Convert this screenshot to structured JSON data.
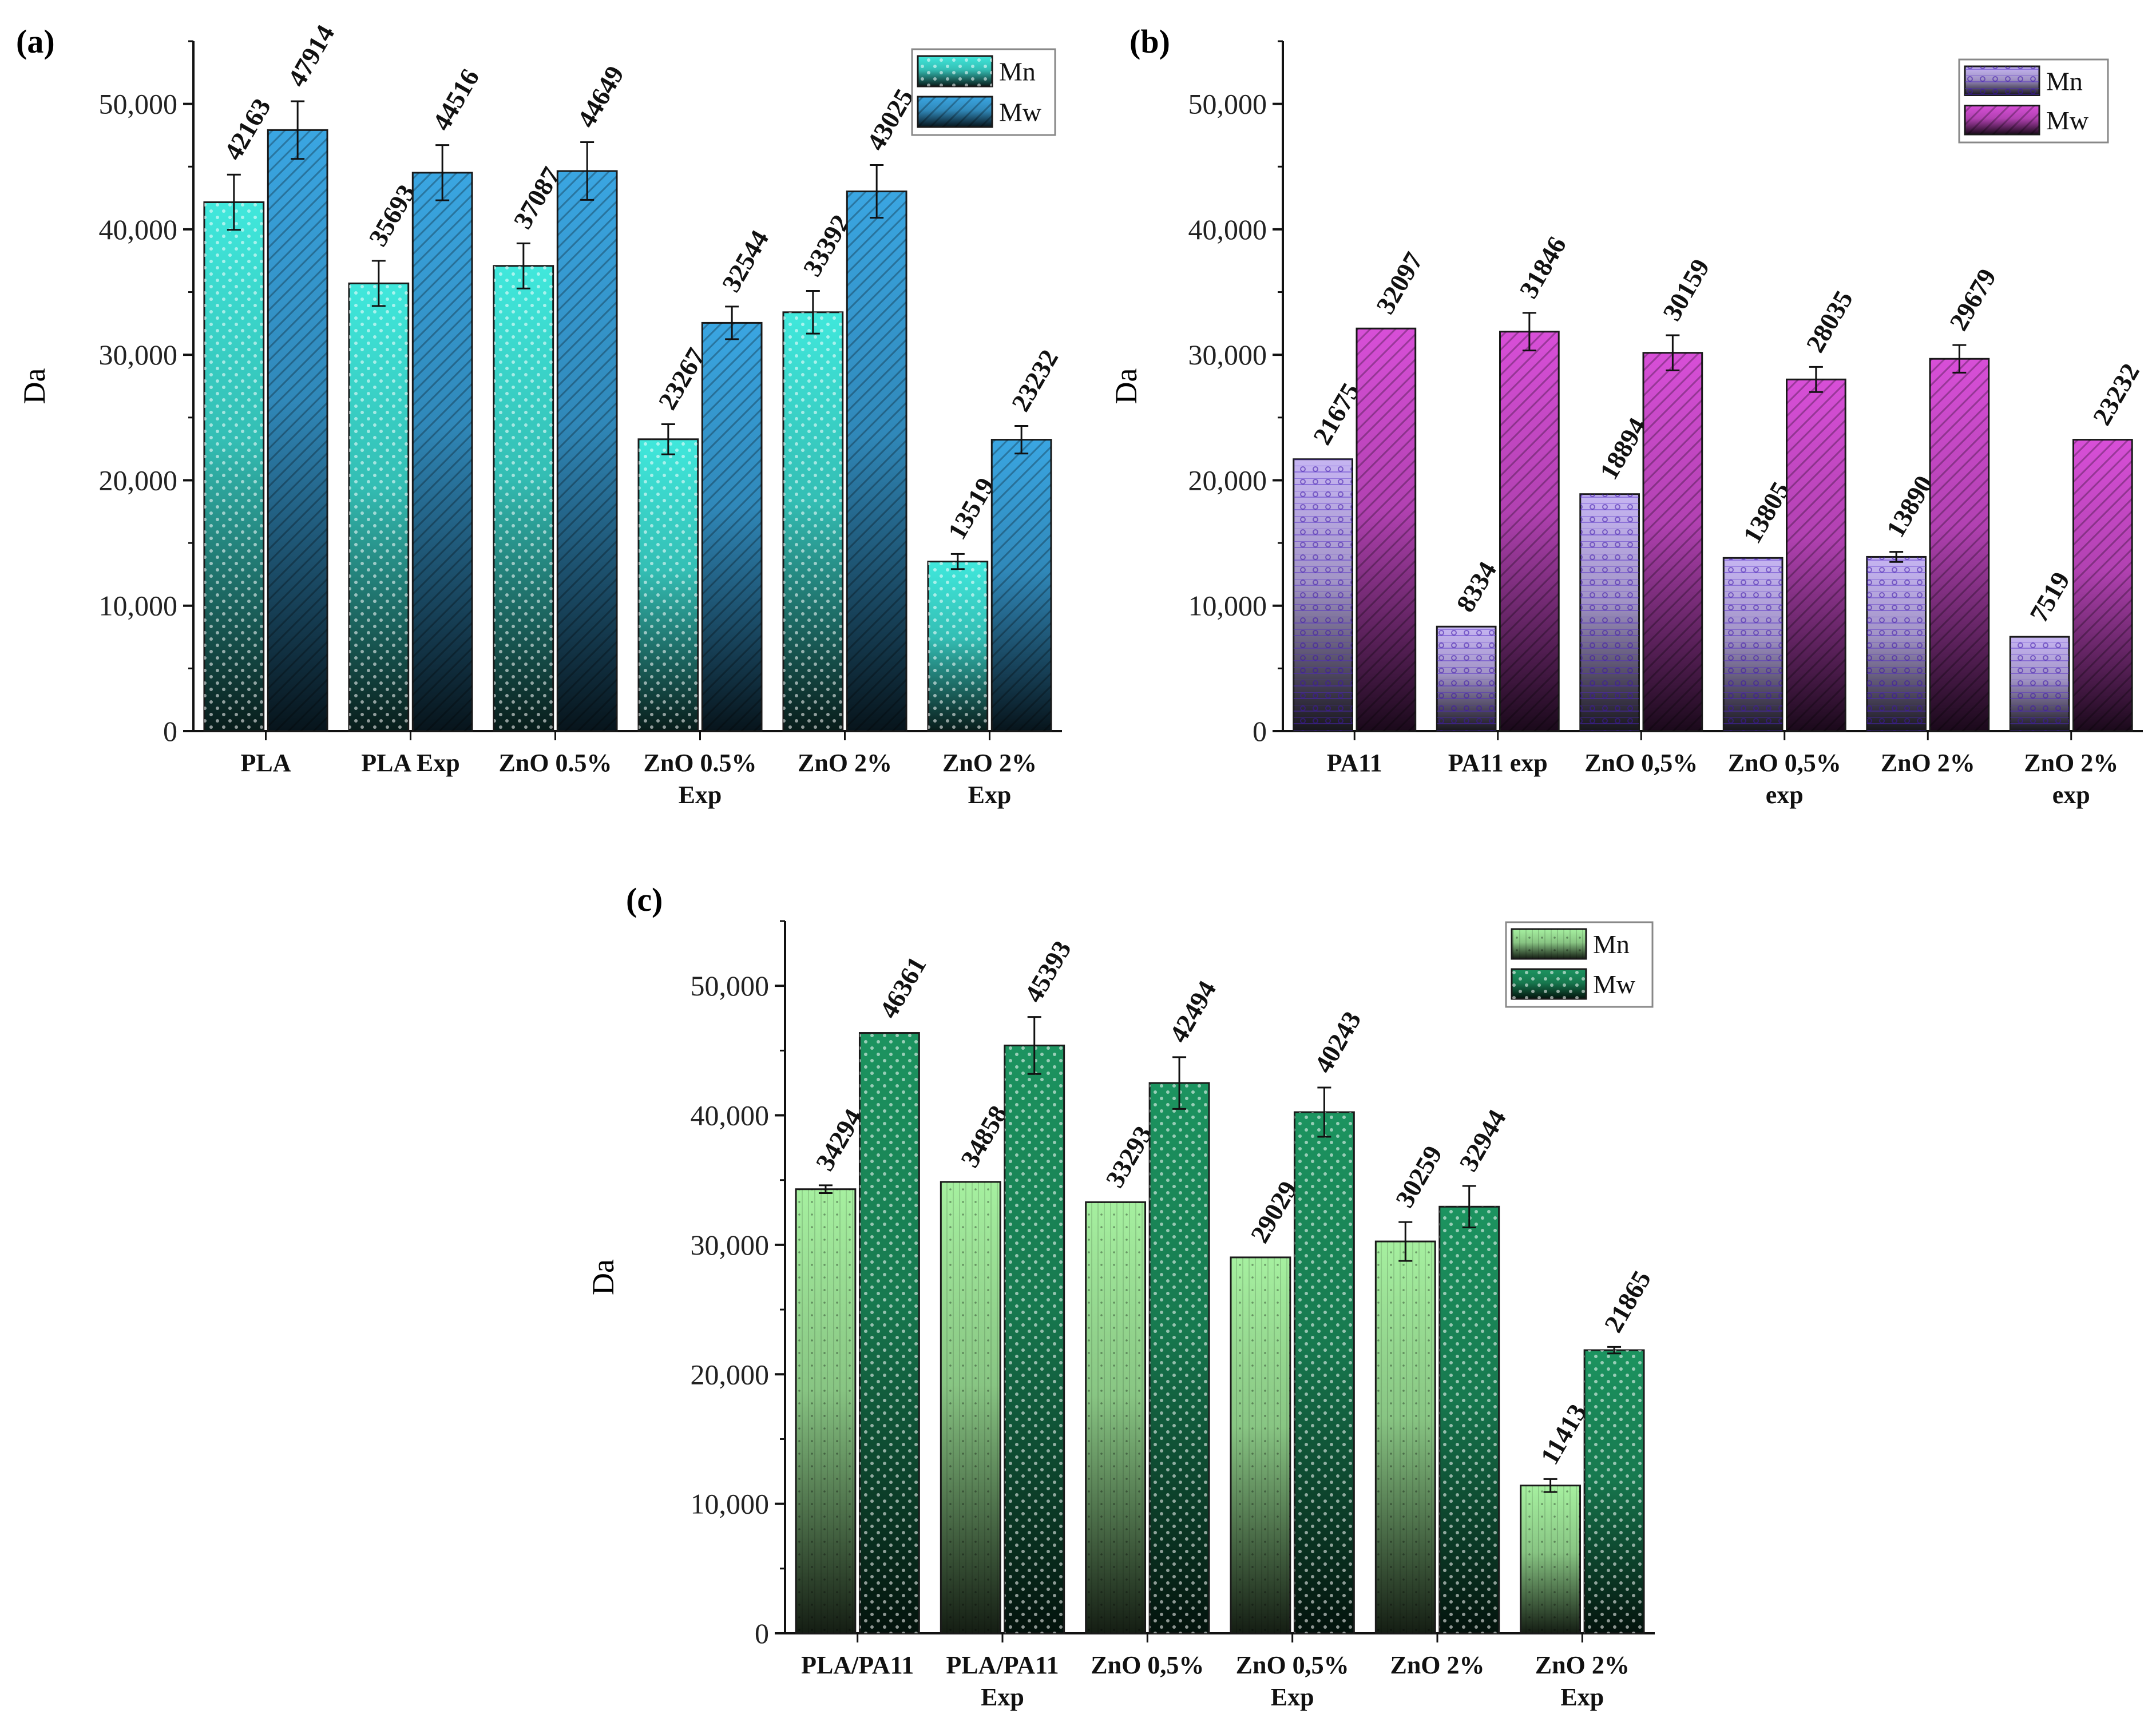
{
  "colors": {
    "a_mn": "#40e8dc",
    "a_mw": "#3aa6e2",
    "b_mn": "#c6b5f2",
    "b_mw": "#d84fd8",
    "c_mn": "#a6f0a0",
    "c_mw": "#1c9460",
    "axis": "#111111"
  },
  "chart_data": [
    {
      "panel": "(a)",
      "type": "bar",
      "ylabel": "Da",
      "ylim": [
        0,
        55000
      ],
      "yticks": [
        0,
        10000,
        20000,
        30000,
        40000,
        50000
      ],
      "ytick_labels": [
        "0",
        "10,000",
        "20,000",
        "30,000",
        "40,000",
        "50,000"
      ],
      "categories": [
        [
          "PLA"
        ],
        [
          "PLA  Exp"
        ],
        [
          "ZnO 0.5%"
        ],
        [
          "ZnO 0.5%",
          "Exp"
        ],
        [
          "ZnO 2%"
        ],
        [
          "ZnO 2%",
          "Exp"
        ]
      ],
      "series": [
        {
          "name": "Mn",
          "values": [
            42163,
            35693,
            37087,
            23267,
            33392,
            13519
          ],
          "errors": [
            2200,
            1800,
            1800,
            1200,
            1700,
            600
          ]
        },
        {
          "name": "Mw",
          "values": [
            47914,
            44516,
            44649,
            32544,
            43025,
            23232
          ],
          "errors": [
            2300,
            2200,
            2300,
            1300,
            2100,
            1100
          ]
        }
      ],
      "legend": "top-right"
    },
    {
      "panel": "(b)",
      "type": "bar",
      "ylabel": "Da",
      "ylim": [
        0,
        55000
      ],
      "yticks": [
        0,
        10000,
        20000,
        30000,
        40000,
        50000
      ],
      "ytick_labels": [
        "0",
        "10,000",
        "20,000",
        "30,000",
        "40,000",
        "50,000"
      ],
      "categories": [
        [
          "PA11"
        ],
        [
          "PA11 exp"
        ],
        [
          "ZnO 0,5%"
        ],
        [
          "ZnO 0,5%",
          "exp"
        ],
        [
          "ZnO 2%"
        ],
        [
          "ZnO 2%",
          "exp"
        ]
      ],
      "series": [
        {
          "name": "Mn",
          "values": [
            21675,
            8334,
            18894,
            13805,
            13890,
            7519
          ],
          "errors": [
            0,
            0,
            0,
            0,
            400,
            0
          ]
        },
        {
          "name": "Mw",
          "values": [
            32097,
            31846,
            30159,
            28035,
            29679,
            23232
          ],
          "errors": [
            0,
            1500,
            1400,
            1000,
            1100,
            0
          ]
        }
      ],
      "legend": "top-right"
    },
    {
      "panel": "(c)",
      "type": "bar",
      "ylabel": "Da",
      "ylim": [
        0,
        55000
      ],
      "yticks": [
        0,
        10000,
        20000,
        30000,
        40000,
        50000
      ],
      "ytick_labels": [
        "0",
        "10,000",
        "20,000",
        "30,000",
        "40,000",
        "50,000"
      ],
      "categories": [
        [
          "PLA/PA11"
        ],
        [
          "PLA/PA11",
          "Exp"
        ],
        [
          "ZnO 0,5%"
        ],
        [
          "ZnO 0,5%",
          "Exp"
        ],
        [
          "ZnO 2%"
        ],
        [
          "ZnO 2%",
          "Exp"
        ]
      ],
      "series": [
        {
          "name": "Mn",
          "values": [
            34294,
            34858,
            33293,
            29029,
            30259,
            11413
          ],
          "errors": [
            300,
            0,
            0,
            0,
            1500,
            500
          ]
        },
        {
          "name": "Mw",
          "values": [
            46361,
            45393,
            42494,
            40243,
            32944,
            21865
          ],
          "errors": [
            0,
            2200,
            2000,
            1900,
            1600,
            250
          ]
        }
      ],
      "legend": "top-right"
    }
  ]
}
